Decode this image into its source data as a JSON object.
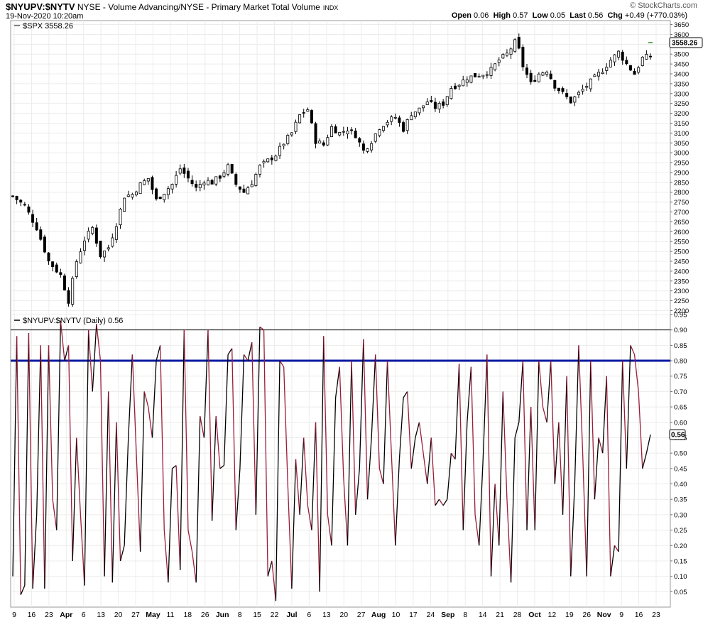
{
  "header": {
    "symbol": "$NYUPV:$NYTV",
    "description": "NYSE - Volume Advancing/NYSE - Primary Market Total Volume",
    "exchange": "INDX",
    "date": "19-Nov-2020 10:20am",
    "logo": "© StockCharts.com",
    "open_label": "Open",
    "open": "0.06",
    "high_label": "High",
    "high": "0.57",
    "low_label": "Low",
    "low": "0.05",
    "last_label": "Last",
    "last": "0.56",
    "chg_label": "Chg",
    "chg": "+0.49 (+770.03%)"
  },
  "chart_data": [
    {
      "type": "candlestick",
      "legend": "$SPX 3558.26",
      "last_value_label": "3558.26",
      "last_value": 3558.26,
      "ylim": [
        2180,
        3670
      ],
      "yticks": [
        2200,
        2250,
        2300,
        2350,
        2400,
        2450,
        2500,
        2550,
        2600,
        2650,
        2700,
        2750,
        2800,
        2850,
        2900,
        2950,
        3000,
        3050,
        3100,
        3150,
        3200,
        3250,
        3300,
        3350,
        3400,
        3450,
        3500,
        3550,
        3600,
        3650
      ],
      "grid": true,
      "anchors": [
        [
          0,
          2780
        ],
        [
          3,
          2730
        ],
        [
          6,
          2620
        ],
        [
          9,
          2450
        ],
        [
          12,
          2380
        ],
        [
          14,
          2250
        ],
        [
          16,
          2450
        ],
        [
          18,
          2560
        ],
        [
          20,
          2620
        ],
        [
          22,
          2480
        ],
        [
          24,
          2520
        ],
        [
          26,
          2640
        ],
        [
          28,
          2780
        ],
        [
          30,
          2790
        ],
        [
          32,
          2840
        ],
        [
          34,
          2870
        ],
        [
          36,
          2760
        ],
        [
          38,
          2800
        ],
        [
          40,
          2840
        ],
        [
          42,
          2920
        ],
        [
          44,
          2870
        ],
        [
          46,
          2820
        ],
        [
          48,
          2860
        ],
        [
          50,
          2850
        ],
        [
          52,
          2880
        ],
        [
          54,
          2930
        ],
        [
          56,
          2840
        ],
        [
          58,
          2800
        ],
        [
          60,
          2850
        ],
        [
          62,
          2930
        ],
        [
          64,
          2960
        ],
        [
          66,
          2990
        ],
        [
          68,
          3050
        ],
        [
          70,
          3100
        ],
        [
          72,
          3190
        ],
        [
          74,
          3220
        ],
        [
          76,
          3060
        ],
        [
          78,
          3040
        ],
        [
          80,
          3130
        ],
        [
          82,
          3100
        ],
        [
          84,
          3120
        ],
        [
          86,
          3090
        ],
        [
          88,
          3010
        ],
        [
          90,
          3060
        ],
        [
          92,
          3130
        ],
        [
          94,
          3160
        ],
        [
          96,
          3180
        ],
        [
          98,
          3120
        ],
        [
          100,
          3200
        ],
        [
          102,
          3220
        ],
        [
          104,
          3260
        ],
        [
          106,
          3230
        ],
        [
          108,
          3250
        ],
        [
          110,
          3330
        ],
        [
          112,
          3350
        ],
        [
          114,
          3380
        ],
        [
          116,
          3390
        ],
        [
          118,
          3400
        ],
        [
          120,
          3420
        ],
        [
          122,
          3470
        ],
        [
          124,
          3500
        ],
        [
          126,
          3560
        ],
        [
          127,
          3520
        ],
        [
          128,
          3440
        ],
        [
          130,
          3350
        ],
        [
          132,
          3400
        ],
        [
          134,
          3420
        ],
        [
          136,
          3340
        ],
        [
          138,
          3300
        ],
        [
          140,
          3260
        ],
        [
          142,
          3300
        ],
        [
          144,
          3340
        ],
        [
          146,
          3380
        ],
        [
          148,
          3420
        ],
        [
          150,
          3470
        ],
        [
          152,
          3510
        ],
        [
          154,
          3450
        ],
        [
          156,
          3400
        ],
        [
          158,
          3480
        ],
        [
          160,
          3490
        ],
        [
          162,
          3420
        ],
        [
          164,
          3370
        ],
        [
          166,
          3300
        ],
        [
          168,
          3390
        ],
        [
          170,
          3480
        ],
        [
          172,
          3520
        ],
        [
          174,
          3550
        ],
        [
          176,
          3620
        ],
        [
          178,
          3590
        ],
        [
          180,
          3570
        ],
        [
          182,
          3560
        ]
      ],
      "x_tick_labels": [
        "9",
        "16",
        "23",
        "Apr",
        "6",
        "13",
        "20",
        "27",
        "May",
        "11",
        "18",
        "26",
        "Jun",
        "8",
        "15",
        "22",
        "Jul",
        "6",
        "13",
        "20",
        "27",
        "Aug",
        "10",
        "17",
        "24",
        "Sep",
        "8",
        "14",
        "21",
        "28",
        "Oct",
        "12",
        "19",
        "26",
        "Nov",
        "9",
        "16",
        "23"
      ],
      "x_tick_bold": [
        "Apr",
        "May",
        "Jun",
        "Jul",
        "Aug",
        "Sep",
        "Oct",
        "Nov"
      ]
    },
    {
      "type": "line",
      "legend": "$NYUPV:$NYTV (Daily) 0.56",
      "last_value_label": "0.56",
      "last_value": 0.56,
      "ylim": [
        0.0,
        0.95
      ],
      "yticks": [
        0.05,
        0.1,
        0.15,
        0.2,
        0.25,
        0.3,
        0.35,
        0.4,
        0.45,
        0.5,
        0.55,
        0.6,
        0.65,
        0.7,
        0.75,
        0.8,
        0.85,
        0.9,
        0.95
      ],
      "reference_lines": [
        0.9,
        0.8
      ],
      "up_color": "#000000",
      "down_color": "#9b1b3a",
      "ref_line_color": "#0a1aa0",
      "series": [
        0.1,
        0.88,
        0.04,
        0.07,
        0.89,
        0.06,
        0.3,
        0.85,
        0.06,
        0.85,
        0.35,
        0.25,
        0.93,
        0.8,
        0.85,
        0.15,
        0.55,
        0.3,
        0.07,
        0.9,
        0.7,
        0.92,
        0.8,
        0.1,
        0.7,
        0.08,
        0.6,
        0.15,
        0.2,
        0.55,
        0.82,
        0.5,
        0.18,
        0.7,
        0.65,
        0.55,
        0.8,
        0.85,
        0.25,
        0.08,
        0.45,
        0.46,
        0.12,
        0.9,
        0.25,
        0.18,
        0.08,
        0.62,
        0.55,
        0.9,
        0.28,
        0.62,
        0.45,
        0.46,
        0.82,
        0.84,
        0.25,
        0.45,
        0.82,
        0.8,
        0.86,
        0.3,
        0.91,
        0.9,
        0.1,
        0.15,
        0.02,
        0.8,
        0.78,
        0.4,
        0.06,
        0.48,
        0.3,
        0.55,
        0.33,
        0.25,
        0.6,
        0.05,
        0.88,
        0.3,
        0.2,
        0.68,
        0.78,
        0.42,
        0.2,
        0.8,
        0.3,
        0.45,
        0.87,
        0.35,
        0.55,
        0.82,
        0.45,
        0.4,
        0.8,
        0.5,
        0.2,
        0.48,
        0.68,
        0.7,
        0.45,
        0.55,
        0.6,
        0.5,
        0.4,
        0.55,
        0.33,
        0.35,
        0.33,
        0.35,
        0.5,
        0.48,
        0.79,
        0.25,
        0.6,
        0.78,
        0.3,
        0.2,
        0.48,
        0.82,
        0.1,
        0.4,
        0.2,
        0.7,
        0.35,
        0.08,
        0.55,
        0.6,
        0.8,
        0.25,
        0.65,
        0.25,
        0.8,
        0.65,
        0.6,
        0.8,
        0.4,
        0.6,
        0.3,
        0.75,
        0.1,
        0.4,
        0.85,
        0.5,
        0.1,
        0.8,
        0.35,
        0.55,
        0.5,
        0.75,
        0.1,
        0.2,
        0.18,
        0.8,
        0.45,
        0.85,
        0.82,
        0.7,
        0.45,
        0.5,
        0.56
      ]
    }
  ]
}
